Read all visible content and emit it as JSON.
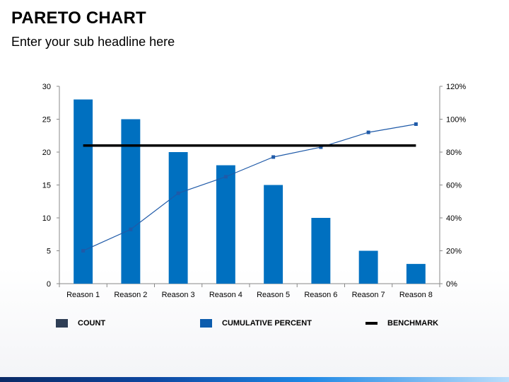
{
  "header": {
    "title": "PARETO CHART",
    "subtitle": "Enter your sub headline here"
  },
  "chart_data": {
    "type": "bar",
    "categories": [
      "Reason 1",
      "Reason 2",
      "Reason 3",
      "Reason 4",
      "Reason 5",
      "Reason 6",
      "Reason 7",
      "Reason 8"
    ],
    "series": [
      {
        "name": "CUMULATIVE PERCENT",
        "kind": "line",
        "axis": "right",
        "values": [
          20,
          33,
          55,
          65,
          77,
          83,
          92,
          97
        ]
      },
      {
        "name": "BENCHMARK",
        "kind": "line",
        "axis": "right",
        "values": [
          84,
          84,
          84,
          84,
          84,
          84,
          84,
          84
        ]
      }
    ],
    "bar_values": [
      28,
      25,
      20,
      18,
      15,
      10,
      5,
      3
    ],
    "ylim": [
      0,
      30
    ],
    "y_ticks": [
      "0",
      "5",
      "10",
      "15",
      "20",
      "25",
      "30"
    ],
    "y2lim": [
      0,
      120
    ],
    "y2_ticks": [
      "0%",
      "20%",
      "40%",
      "60%",
      "80%",
      "100%",
      "120%"
    ],
    "title": "",
    "xlabel": "",
    "ylabel": "",
    "grid": false,
    "legend": {
      "placement": "bottom",
      "entries": [
        {
          "label": "COUNT",
          "color": "#2e3e55"
        },
        {
          "label": "CUMULATIVE PERCENT",
          "color": "#0b5cad"
        },
        {
          "label": "BENCHMARK",
          "color": "#000000"
        }
      ]
    },
    "colors": {
      "bar": "#0070c0",
      "cumulative": "#1f5aa8",
      "benchmark": "#000000",
      "axis": "#888888"
    }
  }
}
